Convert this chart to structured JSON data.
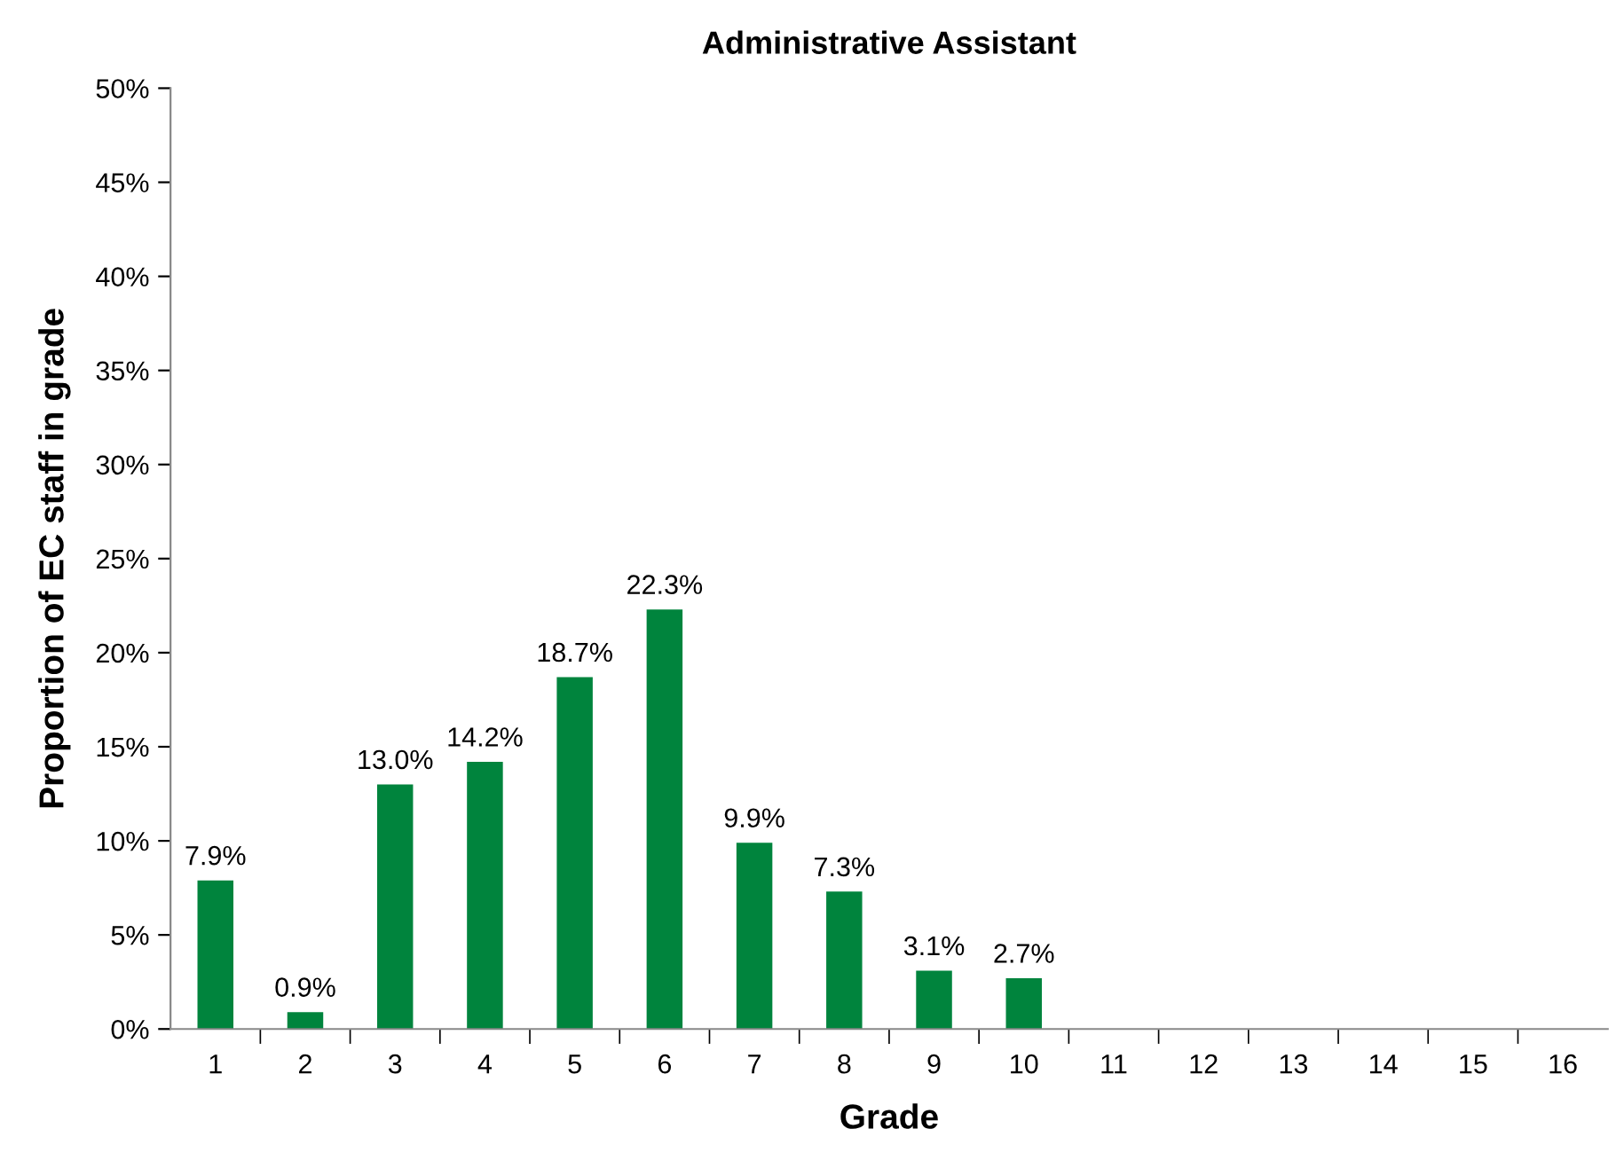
{
  "chart_data": {
    "type": "bar",
    "title": "Administrative Assistant",
    "xlabel": "Grade",
    "ylabel": "Proportion of EC staff in grade",
    "categories": [
      "1",
      "2",
      "3",
      "4",
      "5",
      "6",
      "7",
      "8",
      "9",
      "10",
      "11",
      "12",
      "13",
      "14",
      "15",
      "16"
    ],
    "values": [
      7.9,
      0.9,
      13.0,
      14.2,
      18.7,
      22.3,
      9.9,
      7.3,
      3.1,
      2.7,
      null,
      null,
      null,
      null,
      null,
      null
    ],
    "value_labels": [
      "7.9%",
      "0.9%",
      "13.0%",
      "14.2%",
      "18.7%",
      "22.3%",
      "9.9%",
      "7.3%",
      "3.1%",
      "2.7%",
      null,
      null,
      null,
      null,
      null,
      null
    ],
    "color": "#00843d",
    "ylim": [
      0,
      50
    ],
    "yticks": [
      {
        "value": 0,
        "label": "0%"
      },
      {
        "value": 5,
        "label": "5%"
      },
      {
        "value": 10,
        "label": "10%"
      },
      {
        "value": 15,
        "label": "15%"
      },
      {
        "value": 20,
        "label": "20%"
      },
      {
        "value": 25,
        "label": "25%"
      },
      {
        "value": 30,
        "label": "30%"
      },
      {
        "value": 35,
        "label": "35%"
      },
      {
        "value": 40,
        "label": "40%"
      },
      {
        "value": 45,
        "label": "45%"
      },
      {
        "value": 50,
        "label": "50%"
      }
    ],
    "grid": false,
    "legend": false
  }
}
